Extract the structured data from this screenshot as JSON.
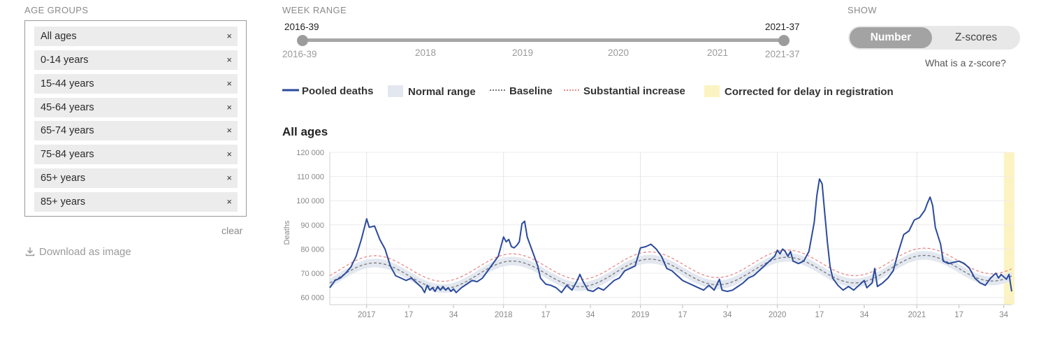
{
  "age_groups": {
    "label": "AGE GROUPS",
    "items": [
      "All ages",
      "0-14 years",
      "15-44 years",
      "45-64 years",
      "65-74 years",
      "75-84 years",
      "65+ years",
      "85+ years"
    ],
    "remove_icon": "×",
    "clear_label": "clear"
  },
  "download": {
    "label": "Download as image",
    "icon": "download-icon"
  },
  "week_range": {
    "label": "WEEK RANGE",
    "start": "2016-39",
    "end": "2021-37",
    "ticks": [
      "2016-39",
      "2018",
      "2019",
      "2020",
      "2021",
      "2021-37"
    ]
  },
  "show": {
    "label": "SHOW",
    "options": [
      "Number",
      "Z-scores"
    ],
    "selected": "Number",
    "zscore_link": "What is a z-score?"
  },
  "legend": [
    {
      "label": "Pooled deaths",
      "color": "#2b4a9b"
    },
    {
      "label": "Normal range",
      "color": "#e3e8f0"
    },
    {
      "label": "Baseline",
      "color": "#777777"
    },
    {
      "label": "Substantial increase",
      "color": "#e88a8a"
    },
    {
      "label": "Corrected for delay in registration",
      "color": "#fbf4c2"
    }
  ],
  "chart_data": {
    "type": "line",
    "title": "All ages",
    "ylabel": "Deaths",
    "ylim": [
      57000,
      120000
    ],
    "yticks": [
      60000,
      70000,
      80000,
      90000,
      100000,
      110000,
      120000
    ],
    "ytick_labels": [
      "60 000",
      "70 000",
      "80 000",
      "90 000",
      "100 000",
      "110 000",
      "120 000"
    ],
    "x_range": [
      0,
      259
    ],
    "xticks": [
      {
        "week": 14,
        "label": "2017",
        "major": true
      },
      {
        "week": 30,
        "label": "17",
        "major": false
      },
      {
        "week": 47,
        "label": "34",
        "major": false
      },
      {
        "week": 66,
        "label": "2018",
        "major": true
      },
      {
        "week": 82,
        "label": "17",
        "major": false
      },
      {
        "week": 99,
        "label": "34",
        "major": false
      },
      {
        "week": 118,
        "label": "2019",
        "major": true
      },
      {
        "week": 134,
        "label": "17",
        "major": false
      },
      {
        "week": 151,
        "label": "34",
        "major": false
      },
      {
        "week": 170,
        "label": "2020",
        "major": true
      },
      {
        "week": 186,
        "label": "17",
        "major": false
      },
      {
        "week": 203,
        "label": "34",
        "major": false
      },
      {
        "week": 223,
        "label": "2021",
        "major": true
      },
      {
        "week": 239,
        "label": "17",
        "major": false
      },
      {
        "week": 256,
        "label": "34",
        "major": false
      }
    ],
    "correction_from_week": 256,
    "series": [
      {
        "name": "Pooled deaths",
        "points": [
          [
            0,
            64000
          ],
          [
            2,
            67000
          ],
          [
            4,
            68000
          ],
          [
            6,
            70000
          ],
          [
            8,
            72500
          ],
          [
            10,
            77000
          ],
          [
            12,
            84000
          ],
          [
            14,
            92500
          ],
          [
            15,
            89000
          ],
          [
            17,
            89500
          ],
          [
            19,
            84000
          ],
          [
            21,
            80000
          ],
          [
            23,
            73000
          ],
          [
            25,
            69000
          ],
          [
            27,
            68000
          ],
          [
            29,
            67000
          ],
          [
            31,
            68000
          ],
          [
            33,
            66000
          ],
          [
            35,
            64000
          ],
          [
            36,
            62000
          ],
          [
            37,
            65000
          ],
          [
            38,
            63000
          ],
          [
            39,
            64000
          ],
          [
            40,
            62500
          ],
          [
            41,
            64500
          ],
          [
            42,
            63000
          ],
          [
            43,
            64500
          ],
          [
            44,
            63000
          ],
          [
            45,
            64000
          ],
          [
            46,
            62500
          ],
          [
            47,
            63500
          ],
          [
            48,
            62000
          ],
          [
            50,
            64000
          ],
          [
            52,
            65500
          ],
          [
            54,
            67000
          ],
          [
            56,
            66500
          ],
          [
            58,
            68000
          ],
          [
            60,
            71000
          ],
          [
            62,
            74000
          ],
          [
            64,
            77000
          ],
          [
            66,
            85000
          ],
          [
            67,
            83000
          ],
          [
            68,
            84000
          ],
          [
            69,
            81000
          ],
          [
            70,
            80500
          ],
          [
            71,
            81500
          ],
          [
            72,
            83000
          ],
          [
            73,
            90500
          ],
          [
            74,
            91500
          ],
          [
            75,
            85000
          ],
          [
            77,
            79000
          ],
          [
            79,
            73000
          ],
          [
            80,
            68000
          ],
          [
            82,
            65500
          ],
          [
            84,
            65000
          ],
          [
            86,
            64000
          ],
          [
            88,
            62000
          ],
          [
            90,
            65000
          ],
          [
            92,
            63000
          ],
          [
            94,
            67000
          ],
          [
            95,
            69500
          ],
          [
            96,
            67000
          ],
          [
            98,
            63000
          ],
          [
            100,
            62500
          ],
          [
            102,
            64000
          ],
          [
            104,
            63000
          ],
          [
            106,
            65000
          ],
          [
            108,
            67000
          ],
          [
            110,
            68000
          ],
          [
            112,
            71000
          ],
          [
            114,
            72000
          ],
          [
            116,
            73000
          ],
          [
            118,
            80500
          ],
          [
            120,
            81000
          ],
          [
            122,
            82000
          ],
          [
            124,
            80000
          ],
          [
            126,
            77000
          ],
          [
            128,
            72000
          ],
          [
            130,
            71000
          ],
          [
            132,
            69000
          ],
          [
            134,
            67000
          ],
          [
            136,
            66000
          ],
          [
            138,
            65000
          ],
          [
            140,
            64000
          ],
          [
            142,
            63000
          ],
          [
            144,
            65000
          ],
          [
            146,
            63000
          ],
          [
            148,
            67500
          ],
          [
            149,
            63000
          ],
          [
            151,
            62500
          ],
          [
            153,
            63000
          ],
          [
            155,
            64500
          ],
          [
            157,
            66000
          ],
          [
            159,
            68000
          ],
          [
            161,
            69000
          ],
          [
            163,
            71000
          ],
          [
            165,
            73000
          ],
          [
            167,
            75000
          ],
          [
            169,
            77000
          ],
          [
            170,
            79500
          ],
          [
            171,
            78000
          ],
          [
            172,
            80000
          ],
          [
            173,
            79000
          ],
          [
            174,
            77000
          ],
          [
            175,
            79000
          ],
          [
            176,
            75000
          ],
          [
            178,
            74000
          ],
          [
            180,
            75000
          ],
          [
            182,
            79000
          ],
          [
            184,
            91000
          ],
          [
            185,
            102000
          ],
          [
            186,
            109000
          ],
          [
            187,
            107000
          ],
          [
            188,
            95000
          ],
          [
            189,
            83000
          ],
          [
            190,
            73000
          ],
          [
            191,
            68000
          ],
          [
            193,
            65000
          ],
          [
            195,
            63000
          ],
          [
            197,
            64500
          ],
          [
            199,
            63000
          ],
          [
            201,
            65000
          ],
          [
            203,
            67000
          ],
          [
            204,
            64000
          ],
          [
            206,
            66000
          ],
          [
            207,
            72000
          ],
          [
            208,
            64500
          ],
          [
            210,
            66000
          ],
          [
            212,
            68000
          ],
          [
            214,
            71000
          ],
          [
            216,
            79000
          ],
          [
            218,
            86000
          ],
          [
            220,
            87500
          ],
          [
            222,
            92000
          ],
          [
            224,
            93000
          ],
          [
            226,
            96000
          ],
          [
            227,
            99000
          ],
          [
            228,
            101500
          ],
          [
            229,
            98000
          ],
          [
            230,
            89000
          ],
          [
            232,
            82000
          ],
          [
            233,
            75000
          ],
          [
            235,
            74000
          ],
          [
            237,
            74500
          ],
          [
            239,
            75000
          ],
          [
            241,
            74000
          ],
          [
            243,
            72000
          ],
          [
            245,
            68000
          ],
          [
            247,
            66000
          ],
          [
            249,
            65000
          ],
          [
            251,
            68000
          ],
          [
            253,
            70000
          ],
          [
            254,
            68000
          ],
          [
            255,
            69500
          ],
          [
            256,
            68500
          ],
          [
            257,
            67500
          ],
          [
            258,
            69500
          ],
          [
            259,
            62500
          ]
        ],
        "color": "#2b4a9b"
      },
      {
        "name": "Baseline",
        "weekly_mean": 68500,
        "amplitude": 5500,
        "trend_per_week": 15,
        "peak_week": 17,
        "period": 52.18
      },
      {
        "name": "Substantial increase",
        "offset_above_baseline": 3000
      },
      {
        "name": "Normal range",
        "half_width": 1800
      }
    ]
  }
}
